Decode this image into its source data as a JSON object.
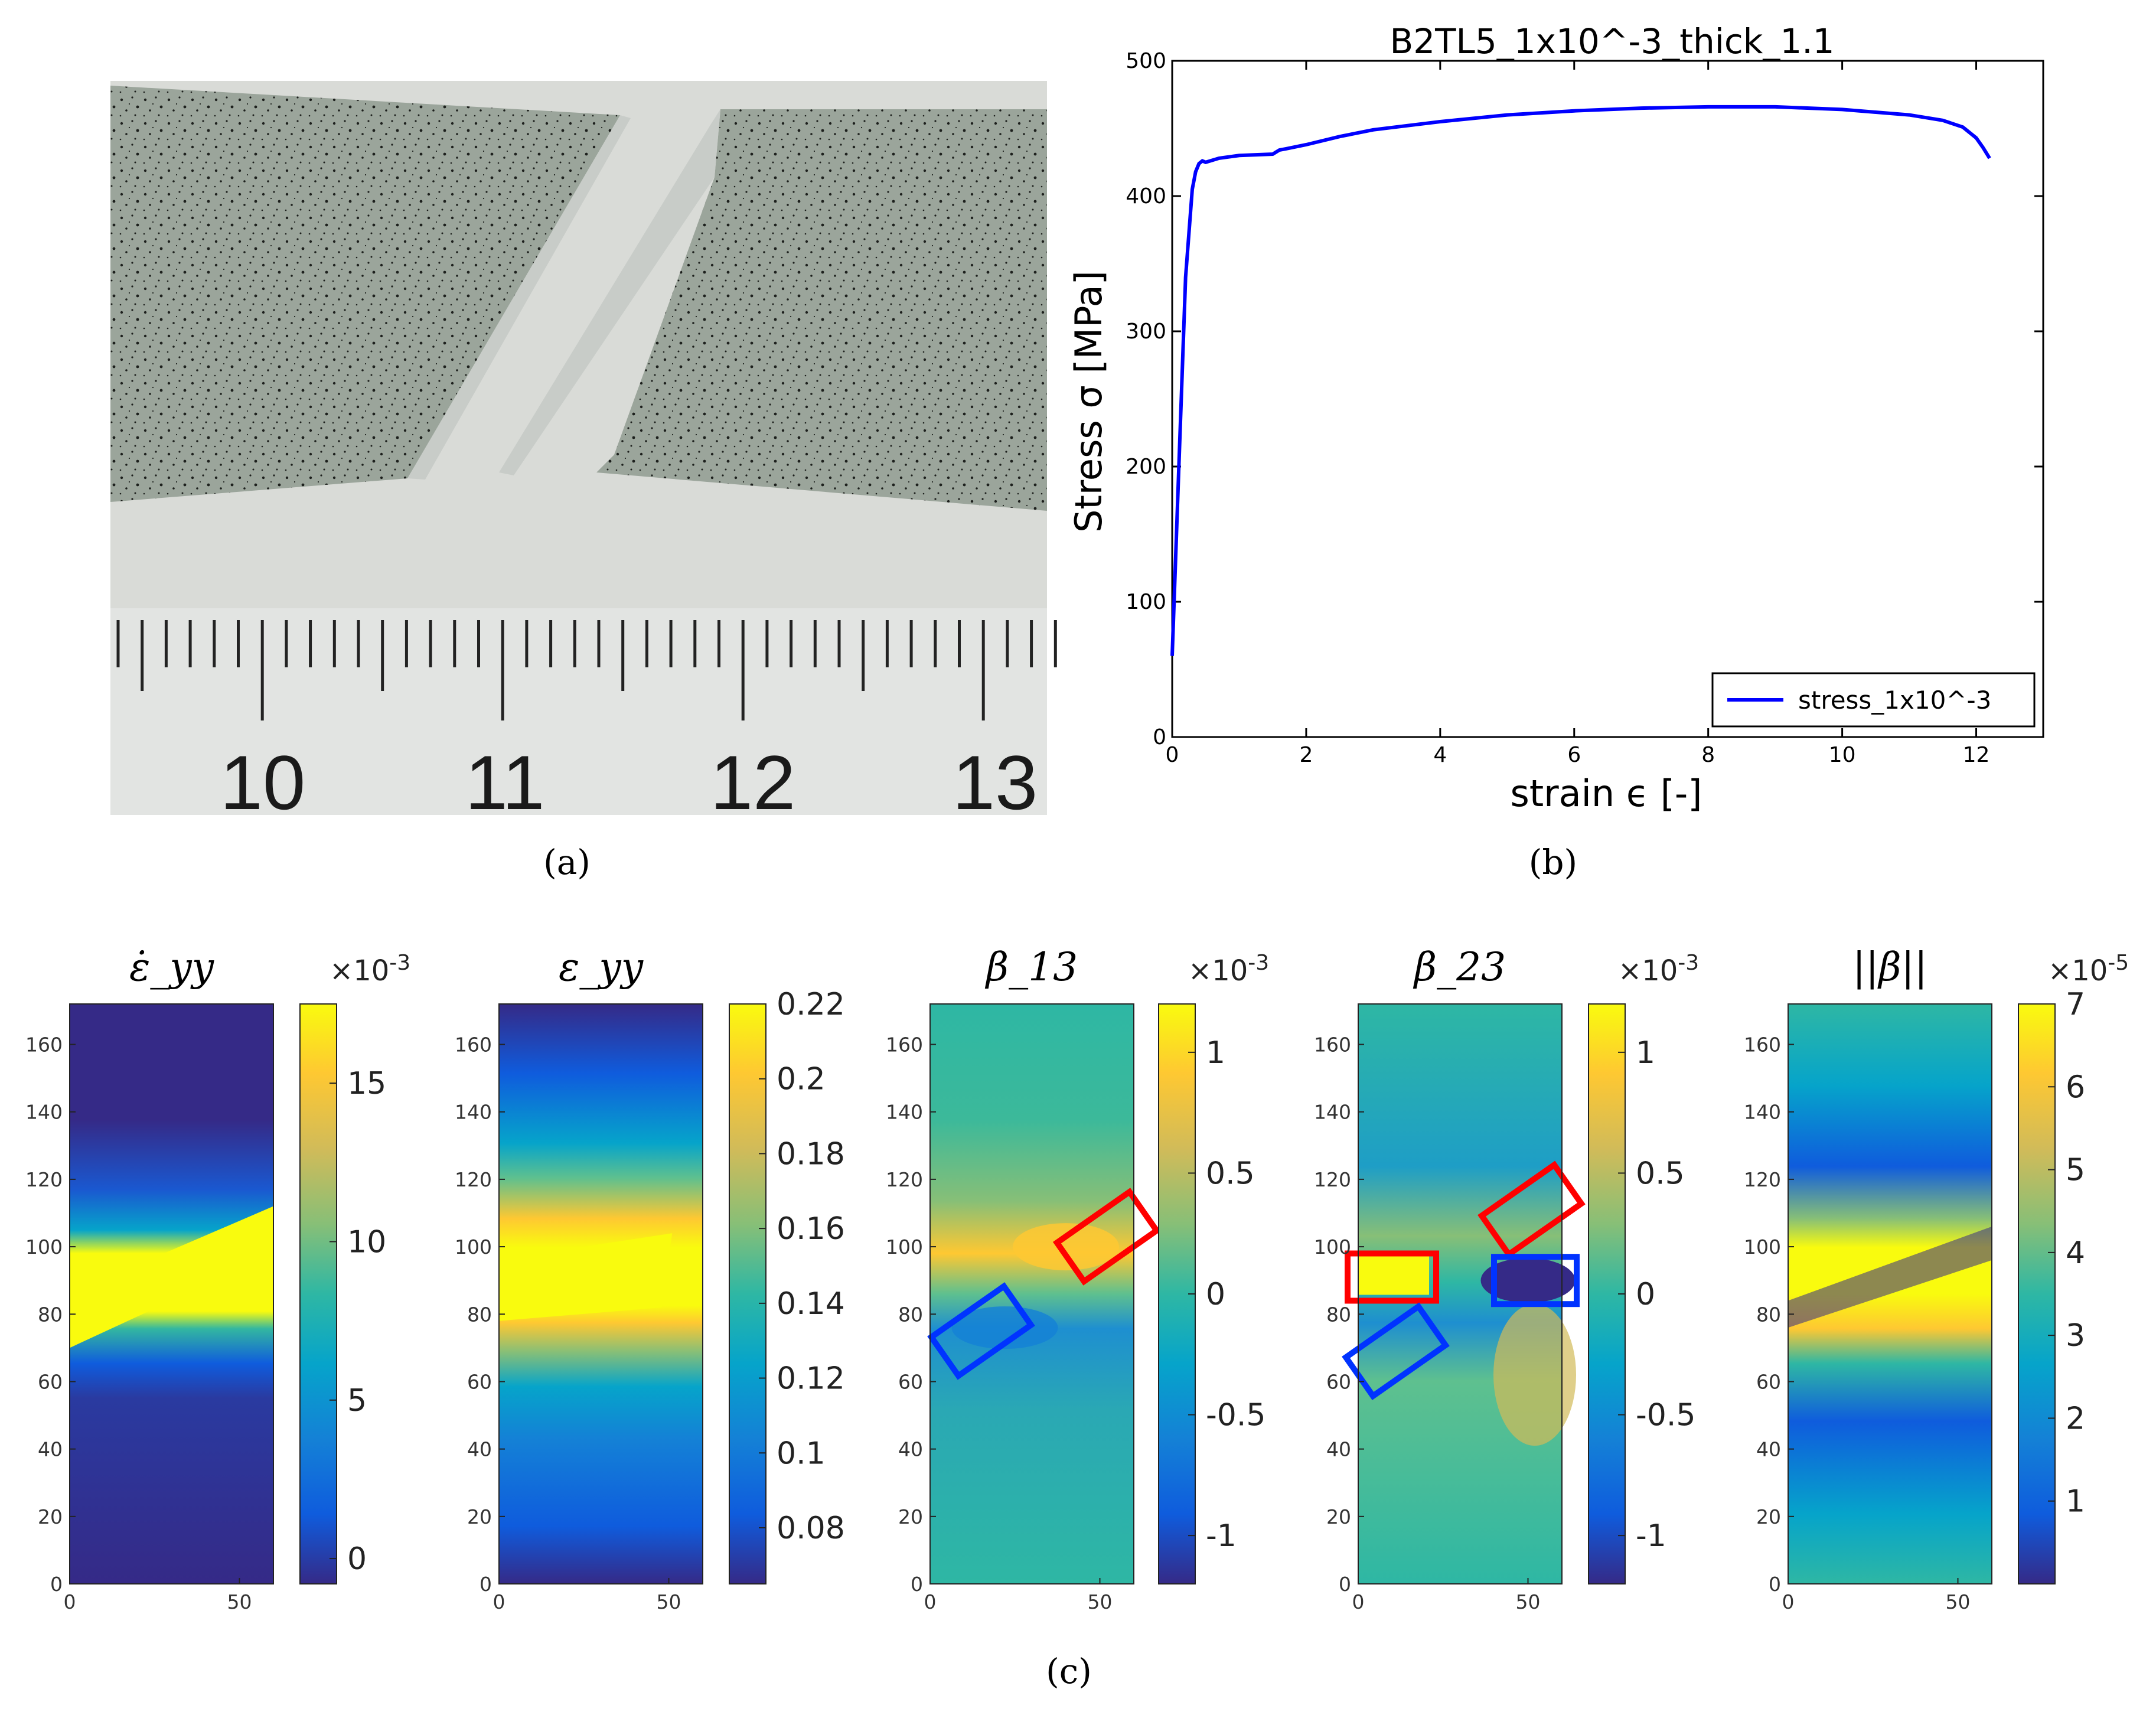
{
  "captions": {
    "a": "(a)",
    "b": "(b)",
    "c": "(c)"
  },
  "photo": {
    "ruler_numbers": [
      "10",
      "11",
      "12",
      "13"
    ],
    "colors": {
      "background": "#d8dad6",
      "specimen": "#9aa49a",
      "ruler": "#dfe1df"
    }
  },
  "chart_data": [
    {
      "type": "line",
      "title": "B2TL5_1x10^-3_thick_1.1",
      "xlabel": "strain ϵ [-]",
      "ylabel": "Stress σ [MPa]",
      "xlim": [
        0,
        13
      ],
      "ylim": [
        0,
        500
      ],
      "xticks": [
        "0",
        "2",
        "4",
        "6",
        "8",
        "10",
        "12"
      ],
      "yticks": [
        "0",
        "100",
        "200",
        "300",
        "400",
        "500"
      ],
      "legend": {
        "label": "stress_1x10^-3",
        "position": "bottom-right"
      },
      "series": [
        {
          "name": "stress_1x10^-3",
          "color": "#0000ff",
          "x": [
            0,
            0.1,
            0.2,
            0.3,
            0.35,
            0.4,
            0.45,
            0.5,
            0.7,
            1.0,
            1.5,
            1.6,
            1.7,
            2.0,
            2.5,
            3.0,
            4.0,
            5.0,
            6.0,
            7.0,
            8.0,
            9.0,
            10.0,
            11.0,
            11.5,
            11.8,
            12.0,
            12.1,
            12.2
          ],
          "y": [
            60,
            200,
            340,
            405,
            418,
            424,
            426,
            425,
            428,
            430,
            431,
            434,
            435,
            438,
            444,
            449,
            455,
            460,
            463,
            465,
            466,
            466,
            464,
            460,
            456,
            451,
            443,
            436,
            428
          ]
        }
      ]
    },
    {
      "type": "heatmap",
      "title": "ε̇_yy",
      "xlim": [
        0,
        60
      ],
      "ylim": [
        0,
        172
      ],
      "xticks": [
        "0",
        "50"
      ],
      "yticks": [
        "0",
        "20",
        "40",
        "60",
        "80",
        "100",
        "120",
        "140",
        "160"
      ],
      "colorbar": {
        "exponent_base": "×10",
        "exponent": "-3",
        "ticks": [
          "0",
          "5",
          "10",
          "15"
        ],
        "range": [
          -0.8,
          17.5
        ]
      },
      "band": {
        "y_left": 78,
        "y_right": 104,
        "peak": "yellow"
      }
    },
    {
      "type": "heatmap",
      "title": "ε_yy",
      "xlim": [
        0,
        60
      ],
      "ylim": [
        0,
        172
      ],
      "xticks": [
        "0",
        "50"
      ],
      "yticks": [
        "0",
        "20",
        "40",
        "60",
        "80",
        "100",
        "120",
        "140",
        "160"
      ],
      "colorbar": {
        "ticks": [
          "0.08",
          "0.1",
          "0.12",
          "0.14",
          "0.16",
          "0.18",
          "0.2",
          "0.22"
        ],
        "range": [
          0.065,
          0.22
        ]
      },
      "band": {
        "y_center": 90,
        "peak": "yellow"
      }
    },
    {
      "type": "heatmap",
      "title": "β_13",
      "xlim": [
        0,
        60
      ],
      "ylim": [
        0,
        172
      ],
      "xticks": [
        "0",
        "50"
      ],
      "yticks": [
        "0",
        "20",
        "40",
        "60",
        "80",
        "100",
        "120",
        "140",
        "160"
      ],
      "colorbar": {
        "exponent_base": "×10",
        "exponent": "-3",
        "ticks": [
          "-1",
          "-0.5",
          "0",
          "0.5",
          "1"
        ],
        "range": [
          -1.2,
          1.2
        ]
      },
      "regions": [
        {
          "color": "red",
          "label": "positive band"
        },
        {
          "color": "blue",
          "label": "negative band"
        }
      ]
    },
    {
      "type": "heatmap",
      "title": "β_23",
      "xlim": [
        0,
        60
      ],
      "ylim": [
        0,
        172
      ],
      "xticks": [
        "0",
        "50"
      ],
      "yticks": [
        "0",
        "20",
        "40",
        "60",
        "80",
        "100",
        "120",
        "140",
        "160"
      ],
      "colorbar": {
        "exponent_base": "×10",
        "exponent": "-3",
        "ticks": [
          "-1",
          "-0.5",
          "0",
          "0.5",
          "1"
        ],
        "range": [
          -1.2,
          1.2
        ]
      },
      "regions": [
        {
          "color": "red",
          "label": "positive left"
        },
        {
          "color": "red",
          "label": "positive upper-right"
        },
        {
          "color": "blue",
          "label": "negative right"
        },
        {
          "color": "blue",
          "label": "negative lower-left"
        }
      ]
    },
    {
      "type": "heatmap",
      "title": "||β||",
      "xlim": [
        0,
        60
      ],
      "ylim": [
        0,
        172
      ],
      "xticks": [
        "0",
        "50"
      ],
      "yticks": [
        "0",
        "20",
        "40",
        "60",
        "80",
        "100",
        "120",
        "140",
        "160"
      ],
      "colorbar": {
        "exponent_base": "×10",
        "exponent": "-5",
        "ticks": [
          "1",
          "2",
          "3",
          "4",
          "5",
          "6",
          "7"
        ],
        "range": [
          0,
          7
        ]
      }
    }
  ]
}
